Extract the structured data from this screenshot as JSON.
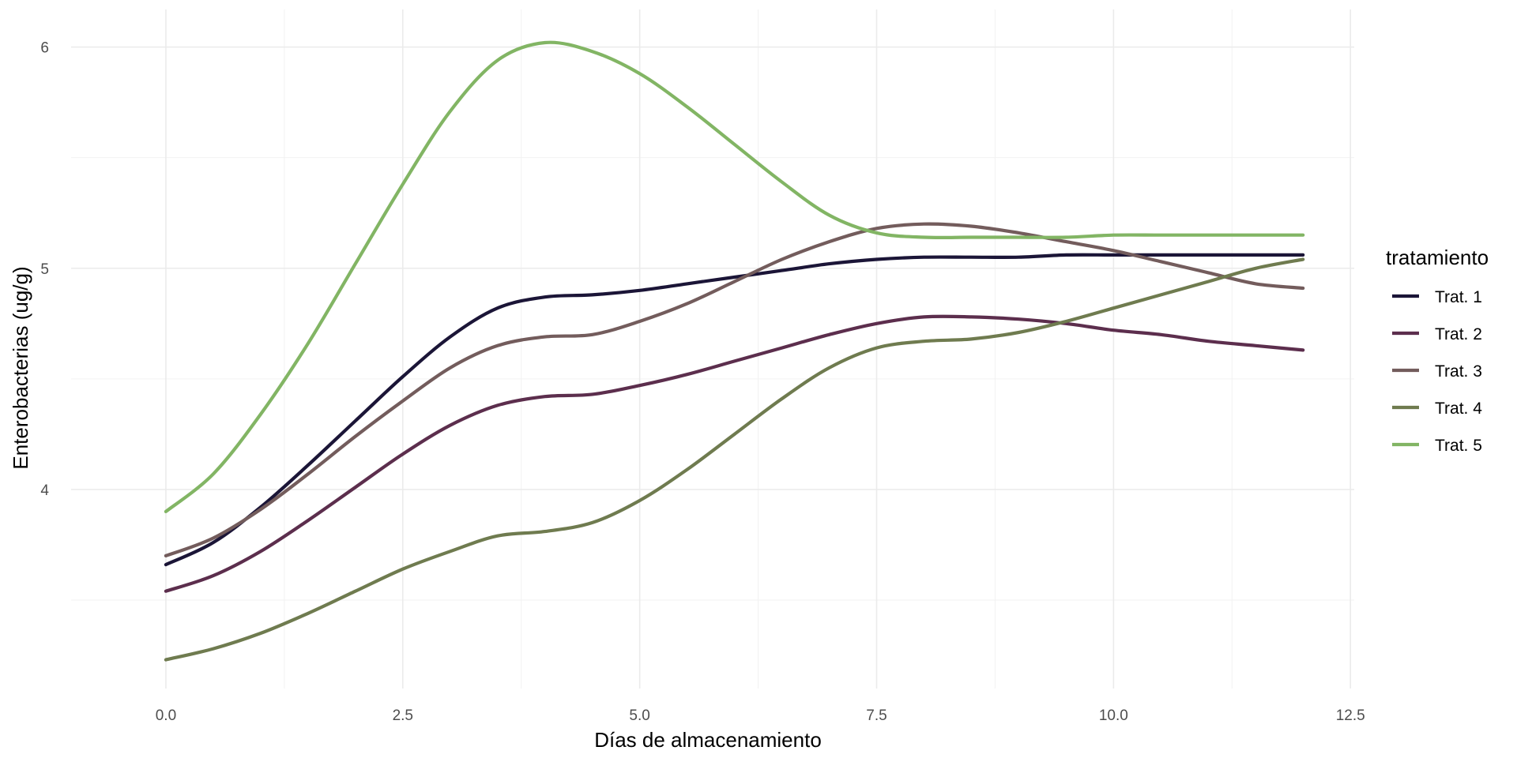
{
  "chart_data": {
    "type": "line",
    "xlabel": "Días de almacenamiento",
    "ylabel": "Enterobacterias (ug/g)",
    "xlim": [
      -1.0,
      12.54
    ],
    "ylim": [
      3.1,
      6.17
    ],
    "x_ticks": [
      0.0,
      2.5,
      5.0,
      7.5,
      10.0,
      12.5
    ],
    "x_tick_labels": [
      "0.0",
      "2.5",
      "5.0",
      "7.5",
      "10.0",
      "12.5"
    ],
    "y_ticks": [
      4,
      5,
      6
    ],
    "y_tick_labels": [
      "4",
      "5",
      "6"
    ],
    "y_minor_ticks": [
      3.5,
      4.5,
      5.5
    ],
    "x_minor_ticks": [
      1.25,
      3.75,
      6.25,
      8.75,
      11.25
    ],
    "grid": true,
    "legend": {
      "title": "tratamiento",
      "position": "right"
    },
    "series": [
      {
        "name": "Trat. 1",
        "color": "#1b1537",
        "x": [
          0,
          0.5,
          1,
          1.5,
          2,
          2.5,
          3,
          3.5,
          4,
          4.5,
          5,
          5.5,
          6,
          6.5,
          7,
          7.5,
          8,
          8.5,
          9,
          9.5,
          10,
          10.5,
          11,
          11.5,
          12
        ],
        "y": [
          3.66,
          3.76,
          3.92,
          4.11,
          4.31,
          4.51,
          4.69,
          4.82,
          4.87,
          4.88,
          4.9,
          4.93,
          4.96,
          4.99,
          5.02,
          5.04,
          5.05,
          5.05,
          5.05,
          5.06,
          5.06,
          5.06,
          5.06,
          5.06,
          5.06
        ]
      },
      {
        "name": "Trat. 2",
        "color": "#5c2e4d",
        "x": [
          0,
          0.5,
          1,
          1.5,
          2,
          2.5,
          3,
          3.5,
          4,
          4.5,
          5,
          5.5,
          6,
          6.5,
          7,
          7.5,
          8,
          8.5,
          9,
          9.5,
          10,
          10.5,
          11,
          11.5,
          12
        ],
        "y": [
          3.54,
          3.61,
          3.72,
          3.86,
          4.01,
          4.16,
          4.29,
          4.38,
          4.42,
          4.43,
          4.47,
          4.52,
          4.58,
          4.64,
          4.7,
          4.75,
          4.78,
          4.78,
          4.77,
          4.75,
          4.72,
          4.7,
          4.67,
          4.65,
          4.63
        ]
      },
      {
        "name": "Trat. 3",
        "color": "#735c5c",
        "x": [
          0,
          0.5,
          1,
          1.5,
          2,
          2.5,
          3,
          3.5,
          4,
          4.5,
          5,
          5.5,
          6,
          6.5,
          7,
          7.5,
          8,
          8.5,
          9,
          9.5,
          10,
          10.5,
          11,
          11.5,
          12
        ],
        "y": [
          3.7,
          3.78,
          3.91,
          4.07,
          4.24,
          4.4,
          4.55,
          4.65,
          4.69,
          4.7,
          4.76,
          4.84,
          4.94,
          5.04,
          5.12,
          5.18,
          5.2,
          5.19,
          5.16,
          5.12,
          5.08,
          5.03,
          4.98,
          4.93,
          4.91
        ]
      },
      {
        "name": "Trat. 4",
        "color": "#6f7b4f",
        "x": [
          0,
          0.5,
          1,
          1.5,
          2,
          2.5,
          3,
          3.5,
          4,
          4.5,
          5,
          5.5,
          6,
          6.5,
          7,
          7.5,
          8,
          8.5,
          9,
          9.5,
          10,
          10.5,
          11,
          11.5,
          12
        ],
        "y": [
          3.23,
          3.28,
          3.35,
          3.44,
          3.54,
          3.64,
          3.72,
          3.79,
          3.81,
          3.85,
          3.95,
          4.09,
          4.25,
          4.41,
          4.55,
          4.64,
          4.67,
          4.68,
          4.71,
          4.76,
          4.82,
          4.88,
          4.94,
          5.0,
          5.04
        ]
      },
      {
        "name": "Trat. 5",
        "color": "#82b564",
        "x": [
          0,
          0.5,
          1,
          1.5,
          2,
          2.5,
          3,
          3.5,
          4,
          4.5,
          5,
          5.5,
          6,
          6.5,
          7,
          7.5,
          8,
          8.5,
          9,
          9.5,
          10,
          10.5,
          11,
          11.5,
          12
        ],
        "y": [
          3.9,
          4.07,
          4.34,
          4.66,
          5.02,
          5.38,
          5.71,
          5.94,
          6.02,
          5.98,
          5.88,
          5.73,
          5.56,
          5.39,
          5.24,
          5.16,
          5.14,
          5.14,
          5.14,
          5.14,
          5.15,
          5.15,
          5.15,
          5.15,
          5.15
        ]
      }
    ]
  }
}
